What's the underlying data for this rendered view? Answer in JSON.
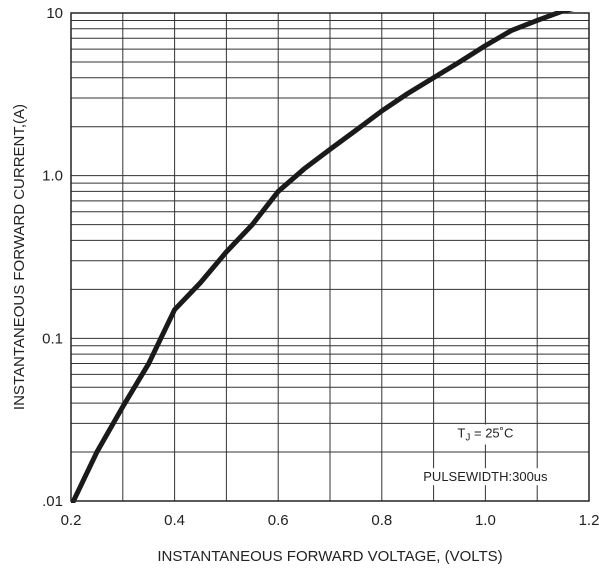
{
  "chart_data": {
    "type": "line",
    "title": "",
    "xlabel": "INSTANTANEOUS FORWARD VOLTAGE, (VOLTS)",
    "ylabel": "INSTANTANEOUS  FORWARD CURRENT,(A)",
    "xlim": [
      0.2,
      1.2
    ],
    "ylim": [
      0.01,
      10
    ],
    "yscale": "log",
    "grid": true,
    "legend": "none",
    "x_ticks": [
      0.2,
      0.4,
      0.6,
      0.8,
      1.0,
      1.2
    ],
    "x_tick_labels": [
      "0.2",
      "0.4",
      "0.6",
      "0.8",
      "1.0",
      "1.2"
    ],
    "y_ticks": [
      0.01,
      0.1,
      1,
      10
    ],
    "y_tick_labels": [
      ".01",
      "0.1",
      "1.0",
      "10"
    ],
    "series": [
      {
        "color": "#1a1a1a",
        "x": [
          0.2,
          0.25,
          0.3,
          0.35,
          0.4,
          0.45,
          0.5,
          0.55,
          0.6,
          0.65,
          0.7,
          0.75,
          0.8,
          0.85,
          0.9,
          0.95,
          1.0,
          1.05,
          1.1,
          1.15,
          1.2
        ],
        "y": [
          0.0093,
          0.02,
          0.038,
          0.07,
          0.15,
          0.22,
          0.34,
          0.5,
          0.8,
          1.1,
          1.45,
          1.9,
          2.5,
          3.2,
          4.0,
          5.0,
          6.3,
          7.8,
          9.0,
          10.3,
          11.2
        ]
      }
    ],
    "annotations": [
      {
        "text_main": "T",
        "text_sub": "J",
        "text_rest": " = 25˚C",
        "x": 1.0,
        "y": 0.026
      },
      {
        "text": "PULSEWIDTH:300us",
        "x": 1.0,
        "y": 0.014
      }
    ]
  }
}
